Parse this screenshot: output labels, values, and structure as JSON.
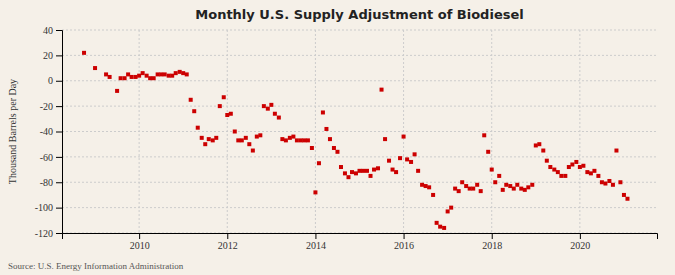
{
  "chart_data": {
    "type": "scatter",
    "title": "Monthly U.S. Supply Adjustment of Biodiesel",
    "ylabel": "Thousand Barrels per Day",
    "annotations": [
      "Source: U.S. Energy Information Administration"
    ],
    "color": "#cc0000",
    "marker": "square",
    "grid": true,
    "xlim": [
      2008.25,
      2021.75
    ],
    "xticks": [
      2010,
      2012,
      2014,
      2016,
      2018,
      2020
    ],
    "ylim": [
      -120,
      40
    ],
    "yticks": [
      -120,
      -100,
      -80,
      -60,
      -40,
      -20,
      0,
      20,
      40
    ],
    "x": [
      2008.75,
      2009.0,
      2009.25,
      2009.33,
      2009.5,
      2009.58,
      2009.67,
      2009.75,
      2009.83,
      2009.92,
      2010.0,
      2010.08,
      2010.17,
      2010.25,
      2010.33,
      2010.42,
      2010.5,
      2010.58,
      2010.67,
      2010.75,
      2010.83,
      2010.92,
      2011.0,
      2011.08,
      2011.17,
      2011.25,
      2011.33,
      2011.42,
      2011.5,
      2011.58,
      2011.67,
      2011.75,
      2011.83,
      2011.92,
      2012.0,
      2012.08,
      2012.17,
      2012.25,
      2012.33,
      2012.42,
      2012.5,
      2012.58,
      2012.67,
      2012.75,
      2012.83,
      2012.92,
      2013.0,
      2013.08,
      2013.17,
      2013.25,
      2013.33,
      2013.42,
      2013.5,
      2013.58,
      2013.67,
      2013.75,
      2013.83,
      2013.92,
      2014.0,
      2014.08,
      2014.17,
      2014.25,
      2014.33,
      2014.42,
      2014.5,
      2014.58,
      2014.67,
      2014.75,
      2014.83,
      2014.92,
      2015.0,
      2015.08,
      2015.17,
      2015.25,
      2015.33,
      2015.42,
      2015.5,
      2015.58,
      2015.67,
      2015.75,
      2015.83,
      2015.92,
      2016.0,
      2016.08,
      2016.17,
      2016.25,
      2016.33,
      2016.42,
      2016.5,
      2016.58,
      2016.67,
      2016.75,
      2016.83,
      2016.92,
      2017.0,
      2017.08,
      2017.17,
      2017.25,
      2017.33,
      2017.42,
      2017.5,
      2017.58,
      2017.67,
      2017.75,
      2017.83,
      2017.92,
      2018.0,
      2018.08,
      2018.17,
      2018.25,
      2018.33,
      2018.42,
      2018.5,
      2018.58,
      2018.67,
      2018.75,
      2018.83,
      2018.92,
      2019.0,
      2019.08,
      2019.17,
      2019.25,
      2019.33,
      2019.42,
      2019.5,
      2019.58,
      2019.67,
      2019.75,
      2019.83,
      2019.92,
      2020.0,
      2020.08,
      2020.17,
      2020.25,
      2020.33,
      2020.42,
      2020.5,
      2020.58,
      2020.67,
      2020.75,
      2020.83,
      2020.92,
      2021.0,
      2021.08
    ],
    "values": [
      22,
      10,
      5,
      3,
      -8,
      2,
      2,
      5,
      3,
      3,
      4,
      6,
      4,
      2,
      2,
      5,
      5,
      5,
      4,
      4,
      6,
      7,
      6,
      5,
      -15,
      -24,
      -37,
      -45,
      -50,
      -46,
      -47,
      -45,
      -20,
      -13,
      -27,
      -26,
      -40,
      -47,
      -47,
      -45,
      -50,
      -55,
      -44,
      -43,
      -20,
      -22,
      -19,
      -26,
      -29,
      -46,
      -47,
      -45,
      -44,
      -47,
      -47,
      -47,
      -47,
      -53,
      -88,
      -65,
      -25,
      -38,
      -46,
      -53,
      -56,
      -68,
      -73,
      -76,
      -72,
      -73,
      -71,
      -71,
      -71,
      -75,
      -70,
      -69,
      -7,
      -46,
      -63,
      -70,
      -72,
      -61,
      -44,
      -62,
      -64,
      -58,
      -71,
      -82,
      -83,
      -84,
      -90,
      -112,
      -115,
      -116,
      -103,
      -100,
      -85,
      -87,
      -80,
      -83,
      -85,
      -85,
      -82,
      -87,
      -43,
      -56,
      -70,
      -80,
      -75,
      -86,
      -82,
      -83,
      -85,
      -82,
      -85,
      -86,
      -84,
      -82,
      -51,
      -50,
      -55,
      -63,
      -68,
      -70,
      -72,
      -75,
      -75,
      -68,
      -66,
      -64,
      -68,
      -67,
      -72,
      -73,
      -71,
      -75,
      -80,
      -81,
      -79,
      -82,
      -55,
      -80,
      -90,
      -93
    ]
  }
}
